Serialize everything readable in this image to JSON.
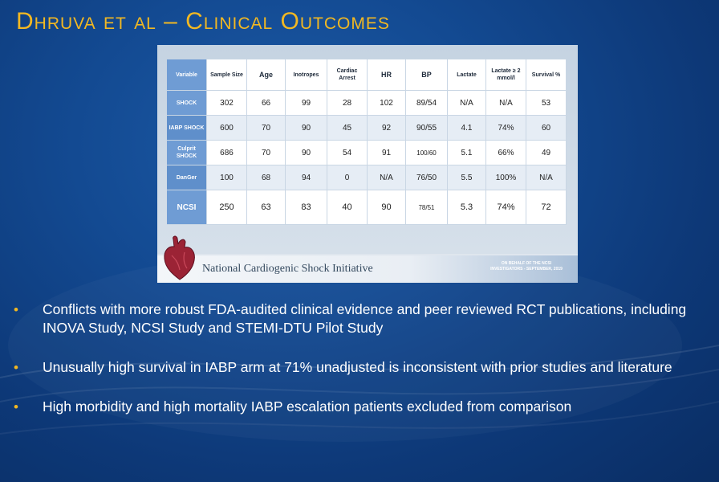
{
  "slide": {
    "title": "Dhruva et al – Clinical Outcomes",
    "title_color": "#f2b822",
    "bullet_color": "#f2b822"
  },
  "figure": {
    "headers": {
      "variable": "Variable",
      "sample_size": "Sample Size",
      "age": "Age",
      "inotropes": "Inotropes",
      "cardiac_arrest": "Cardiac Arrest",
      "hr": "HR",
      "bp": "BP",
      "lactate": "Lactate",
      "lactate_ge2": "Lactate ≥ 2 mmol/l",
      "survival": "Survival %"
    },
    "rows": [
      {
        "variable": "SHOCK",
        "sample_size": "302",
        "age": "66",
        "inotropes": "99",
        "cardiac_arrest": "28",
        "hr": "102",
        "bp": "89/54",
        "lactate": "N/A",
        "lactate_ge2": "N/A",
        "survival": "53"
      },
      {
        "variable": "IABP SHOCK",
        "sample_size": "600",
        "age": "70",
        "inotropes": "90",
        "cardiac_arrest": "45",
        "hr": "92",
        "bp": "90/55",
        "lactate": "4.1",
        "lactate_ge2": "74%",
        "survival": "60"
      },
      {
        "variable": "Culprit SHOCK",
        "sample_size": "686",
        "age": "70",
        "inotropes": "90",
        "cardiac_arrest": "54",
        "hr": "91",
        "bp": "100/60",
        "lactate": "5.1",
        "lactate_ge2": "66%",
        "survival": "49"
      },
      {
        "variable": "DanGer",
        "sample_size": "100",
        "age": "68",
        "inotropes": "94",
        "cardiac_arrest": "0",
        "hr": "N/A",
        "bp": "76/50",
        "lactate": "5.5",
        "lactate_ge2": "100%",
        "survival": "N/A"
      },
      {
        "variable": "NCSI",
        "sample_size": "250",
        "age": "63",
        "inotropes": "83",
        "cardiac_arrest": "40",
        "hr": "90",
        "bp": "78/51",
        "lactate": "5.3",
        "lactate_ge2": "74%",
        "survival": "72"
      }
    ],
    "banner_title": "National Cardiogenic Shock Initiative",
    "banner_note": "ON BEHALF OF THE NCSI INVESTIGATORS - SEPTEMBER, 2019",
    "heart_icon": "heart-icon"
  },
  "bullets": [
    "Conflicts with more robust FDA-audited clinical evidence and peer reviewed RCT publications, including INOVA Study, NCSI Study and STEMI-DTU Pilot Study",
    "Unusually high survival in IABP arm at 71% unadjusted is inconsistent with prior studies and literature",
    "High morbidity and high mortality IABP escalation patients excluded from comparison"
  ]
}
